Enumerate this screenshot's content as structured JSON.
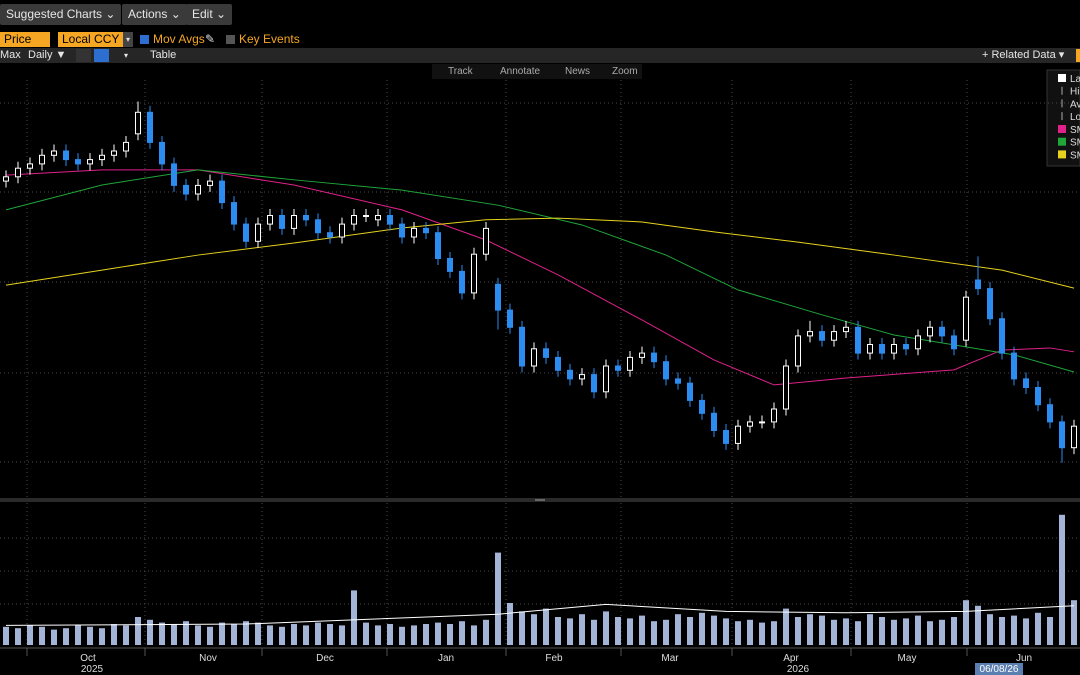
{
  "toolbar": {
    "buttons": [
      "Suggested Charts",
      "Actions",
      "Edit"
    ],
    "price": "Price",
    "currency": "Local CCY",
    "mov_avgs": "Mov Avgs",
    "key_events": "Key Events",
    "range": "Max",
    "frequency": "Daily",
    "table": "Table",
    "related": "Related Data",
    "tools": [
      "Track",
      "Annotate",
      "News",
      "Zoom"
    ]
  },
  "chart_data": {
    "type": "candlestick",
    "up_color": "#ffffff",
    "down_color": "#2d8cf0",
    "volume_color": "#a3b4d6",
    "volume_avg_color": "#ffffff",
    "ylim": [
      0,
      100
    ],
    "volume_ylim": [
      0,
      100
    ],
    "x_labels": [
      "Oct",
      "Nov",
      "Dec",
      "Jan",
      "Feb",
      "Mar",
      "Apr",
      "May",
      "Jun"
    ],
    "years": [
      "2025",
      "2026"
    ],
    "cursor_date": "06/08/26",
    "legend_items": [
      "La",
      "Hi",
      "Av",
      "Lo"
    ],
    "candles": [
      [
        73,
        75.5,
        71.5,
        74
      ],
      [
        74,
        77.5,
        72.5,
        76
      ],
      [
        76,
        78.5,
        74.5,
        77
      ],
      [
        77,
        80.5,
        75.5,
        79
      ],
      [
        79,
        81.5,
        77.5,
        80
      ],
      [
        80,
        81.5,
        76.5,
        78
      ],
      [
        78,
        79.5,
        75.5,
        77
      ],
      [
        77,
        79.5,
        75.5,
        78
      ],
      [
        78,
        80.5,
        76.5,
        79
      ],
      [
        79,
        81.5,
        77.5,
        80
      ],
      [
        80,
        83.5,
        78.5,
        82
      ],
      [
        84,
        91.5,
        82.5,
        89
      ],
      [
        89,
        90.5,
        80.5,
        82
      ],
      [
        82,
        83.5,
        75.5,
        77
      ],
      [
        77,
        78.5,
        70.5,
        72
      ],
      [
        72,
        73.5,
        68.5,
        70
      ],
      [
        70,
        73.5,
        68.5,
        72
      ],
      [
        72,
        74.5,
        70.5,
        73
      ],
      [
        73,
        74.5,
        66.5,
        68
      ],
      [
        68,
        69.5,
        61.5,
        63
      ],
      [
        63,
        64.5,
        57.5,
        59
      ],
      [
        59,
        64.5,
        57.5,
        63
      ],
      [
        63,
        66.5,
        61.5,
        65
      ],
      [
        65,
        66.5,
        60.5,
        62
      ],
      [
        62,
        66.5,
        60.5,
        65
      ],
      [
        65,
        66.5,
        62.5,
        64
      ],
      [
        64,
        65.5,
        59.5,
        61
      ],
      [
        61,
        62.5,
        58.5,
        60
      ],
      [
        60,
        64.5,
        58.5,
        63
      ],
      [
        63,
        66.5,
        61.5,
        65
      ],
      [
        65,
        66.5,
        63.5,
        65
      ],
      [
        64,
        66.5,
        62.5,
        65
      ],
      [
        65,
        66.5,
        61.5,
        63
      ],
      [
        63,
        64.5,
        58.5,
        60
      ],
      [
        60,
        63.5,
        58.5,
        62
      ],
      [
        62,
        63.5,
        59.5,
        61
      ],
      [
        61,
        62.5,
        53.5,
        55
      ],
      [
        55,
        56.5,
        50.5,
        52
      ],
      [
        52,
        53.5,
        45.5,
        47
      ],
      [
        47,
        57.5,
        45.5,
        56
      ],
      [
        56,
        63.5,
        54.5,
        62
      ],
      [
        49,
        50.5,
        38.5,
        43
      ],
      [
        43,
        44.5,
        37.5,
        39
      ],
      [
        39,
        40.5,
        28.5,
        30
      ],
      [
        30,
        35.5,
        28.5,
        34
      ],
      [
        34,
        35.5,
        30.5,
        32
      ],
      [
        32,
        33.5,
        27.5,
        29
      ],
      [
        29,
        30.5,
        25.5,
        27
      ],
      [
        27,
        29.5,
        25.5,
        28
      ],
      [
        28,
        29.5,
        22.5,
        24
      ],
      [
        24,
        31.5,
        22.5,
        30
      ],
      [
        30,
        31.5,
        27.5,
        29
      ],
      [
        29,
        33.5,
        27.5,
        32
      ],
      [
        32,
        34.5,
        30.5,
        33
      ],
      [
        33,
        34.5,
        29.5,
        31
      ],
      [
        31,
        32.5,
        25.5,
        27
      ],
      [
        27,
        28.5,
        24.5,
        26
      ],
      [
        26,
        27.5,
        20.5,
        22
      ],
      [
        22,
        23.5,
        17.5,
        19
      ],
      [
        19,
        20.5,
        13.5,
        15
      ],
      [
        15,
        16.5,
        10.5,
        12
      ],
      [
        12,
        17.5,
        10.5,
        16
      ],
      [
        16,
        18.5,
        14.5,
        17
      ],
      [
        17,
        18.5,
        15.5,
        17
      ],
      [
        17,
        21.5,
        15.5,
        20
      ],
      [
        20,
        31.5,
        18.5,
        30
      ],
      [
        30,
        38.5,
        28.5,
        37
      ],
      [
        37,
        40.5,
        35.5,
        38
      ],
      [
        38,
        39.5,
        34.5,
        36
      ],
      [
        36,
        39.5,
        34.5,
        38
      ],
      [
        38,
        40.5,
        36.5,
        39
      ],
      [
        39,
        40.5,
        31.5,
        33
      ],
      [
        33,
        36.5,
        31.5,
        35
      ],
      [
        35,
        36.5,
        31.5,
        33
      ],
      [
        33,
        36.5,
        31.5,
        35
      ],
      [
        35,
        36.5,
        32.5,
        34
      ],
      [
        34,
        38.5,
        32.5,
        37
      ],
      [
        37,
        40.5,
        35.5,
        39
      ],
      [
        39,
        40.5,
        35.5,
        37
      ],
      [
        37,
        38.5,
        32.5,
        34
      ],
      [
        36,
        47.5,
        34.5,
        46
      ],
      [
        50,
        55.5,
        46.5,
        48
      ],
      [
        48,
        49.5,
        39.5,
        41
      ],
      [
        41,
        42.5,
        31.5,
        33
      ],
      [
        33,
        34.5,
        25.5,
        27
      ],
      [
        27,
        28.5,
        23.5,
        25
      ],
      [
        25,
        26.5,
        19.5,
        21
      ],
      [
        21,
        22.5,
        15.5,
        17
      ],
      [
        17,
        18.5,
        7.5,
        11
      ],
      [
        11,
        17.5,
        9.5,
        16
      ]
    ],
    "volume": [
      13,
      12,
      14,
      13,
      11,
      12,
      14,
      13,
      12,
      15,
      14,
      20,
      18,
      16,
      15,
      17,
      14,
      13,
      16,
      15,
      17,
      16,
      14,
      13,
      15,
      14,
      16,
      15,
      14,
      39,
      16,
      14,
      15,
      13,
      14,
      15,
      16,
      15,
      17,
      14,
      18,
      66,
      30,
      24,
      22,
      26,
      20,
      19,
      22,
      18,
      24,
      20,
      19,
      21,
      17,
      18,
      22,
      20,
      23,
      21,
      19,
      17,
      18,
      16,
      17,
      26,
      20,
      22,
      21,
      18,
      19,
      17,
      22,
      20,
      18,
      19,
      21,
      17,
      18,
      20,
      32,
      28,
      22,
      20,
      21,
      19,
      23,
      20,
      93,
      32
    ],
    "volume_avg": {
      "x": [
        0,
        20,
        41,
        50,
        60,
        70,
        80,
        89
      ],
      "values": [
        14,
        15,
        22,
        29,
        24,
        23,
        24,
        28
      ]
    },
    "series": [
      {
        "name": "SM",
        "color": "#e0218a",
        "x": [
          0,
          8,
          16,
          24,
          33,
          40,
          46,
          53,
          59,
          64,
          70,
          79,
          83,
          87,
          89
        ],
        "values": [
          74.4,
          75.6,
          75.6,
          72.1,
          66.3,
          59.3,
          51.2,
          40.7,
          31.4,
          25.6,
          27.2,
          29.1,
          33.7,
          34.2,
          33.3
        ]
      },
      {
        "name": "SM",
        "color": "#1fa53a",
        "x": [
          0,
          8,
          16,
          24,
          33,
          41,
          48,
          55,
          61,
          68,
          74,
          79,
          84,
          89
        ],
        "values": [
          66.3,
          72.1,
          75.6,
          73.3,
          70.9,
          67.4,
          62.8,
          55.8,
          47.7,
          41.9,
          37.2,
          34.9,
          32.6,
          28.6
        ]
      },
      {
        "name": "SM",
        "color": "#e6d21e",
        "x": [
          0,
          8,
          16,
          24,
          33,
          40,
          46,
          53,
          59,
          66,
          74,
          83,
          89
        ],
        "values": [
          48.8,
          52.3,
          55.8,
          58.6,
          62.1,
          64,
          64.4,
          63.5,
          61.2,
          58.8,
          55.8,
          52.3,
          48.1
        ]
      }
    ]
  }
}
